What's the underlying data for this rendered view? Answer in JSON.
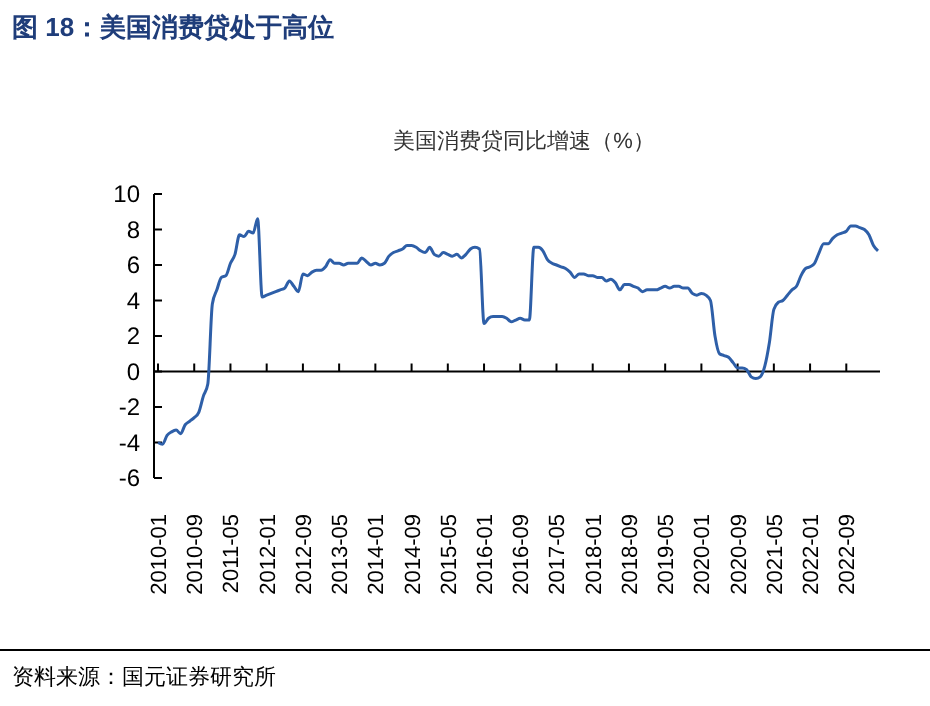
{
  "chart_data": {
    "type": "line",
    "title": "图 18：美国消费贷处于高位",
    "subtitle": "美国消费贷同比增速（%）",
    "categories": [
      "2010-01",
      null,
      null,
      null,
      null,
      null,
      null,
      null,
      "2010-09",
      null,
      null,
      null,
      null,
      null,
      null,
      null,
      "2011-05",
      null,
      null,
      null,
      null,
      null,
      null,
      null,
      "2012-01",
      null,
      null,
      null,
      null,
      null,
      null,
      null,
      "2012-09",
      null,
      null,
      null,
      null,
      null,
      null,
      null,
      "2013-05",
      null,
      null,
      null,
      null,
      null,
      null,
      null,
      "2014-01",
      null,
      null,
      null,
      null,
      null,
      null,
      null,
      "2014-09",
      null,
      null,
      null,
      null,
      null,
      null,
      null,
      "2015-05",
      null,
      null,
      null,
      null,
      null,
      null,
      null,
      "2016-01",
      null,
      null,
      null,
      null,
      null,
      null,
      null,
      "2016-09",
      null,
      null,
      null,
      null,
      null,
      null,
      null,
      "2017-05",
      null,
      null,
      null,
      null,
      null,
      null,
      null,
      "2018-01",
      null,
      null,
      null,
      null,
      null,
      null,
      null,
      "2018-09",
      null,
      null,
      null,
      null,
      null,
      null,
      null,
      "2019-05",
      null,
      null,
      null,
      null,
      null,
      null,
      null,
      "2020-01",
      null,
      null,
      null,
      null,
      null,
      null,
      null,
      "2020-09",
      null,
      null,
      null,
      null,
      null,
      null,
      null,
      "2021-05",
      null,
      null,
      null,
      null,
      null,
      null,
      null,
      "2022-01",
      null,
      null,
      null,
      null,
      null,
      null,
      null,
      "2022-09",
      null,
      null,
      null,
      null,
      null,
      null,
      null
    ],
    "series": [
      {
        "color": "#2e5fa8",
        "values": [
          -4.0,
          -4.1,
          -3.6,
          -3.4,
          -3.3,
          -3.5,
          -3.0,
          -2.8,
          -2.6,
          -2.3,
          -1.4,
          -0.7,
          3.8,
          4.6,
          5.3,
          5.4,
          6.1,
          6.6,
          7.7,
          7.6,
          7.9,
          7.8,
          8.6,
          4.2,
          4.3,
          4.4,
          4.5,
          4.6,
          4.7,
          5.1,
          4.8,
          4.5,
          5.5,
          5.4,
          5.6,
          5.7,
          5.7,
          5.9,
          6.3,
          6.1,
          6.1,
          6.0,
          6.1,
          6.1,
          6.1,
          6.4,
          6.2,
          6.0,
          6.1,
          6.0,
          6.1,
          6.5,
          6.7,
          6.8,
          6.9,
          7.1,
          7.1,
          7.0,
          6.8,
          6.7,
          7.0,
          6.6,
          6.5,
          6.7,
          6.6,
          6.5,
          6.6,
          6.4,
          6.6,
          6.9,
          7.0,
          6.9,
          2.7,
          3.0,
          3.1,
          3.1,
          3.1,
          3.0,
          2.8,
          2.9,
          3.0,
          2.9,
          2.9,
          7.0,
          7.0,
          6.8,
          6.3,
          6.1,
          6.0,
          5.9,
          5.8,
          5.6,
          5.3,
          5.5,
          5.5,
          5.4,
          5.4,
          5.3,
          5.3,
          5.1,
          5.2,
          5.0,
          4.6,
          4.9,
          4.9,
          4.8,
          4.7,
          4.5,
          4.6,
          4.6,
          4.6,
          4.7,
          4.8,
          4.7,
          4.8,
          4.8,
          4.7,
          4.7,
          4.4,
          4.3,
          4.4,
          4.3,
          4.0,
          2.0,
          1.0,
          0.9,
          0.8,
          0.5,
          0.2,
          0.2,
          0.1,
          -0.3,
          -0.4,
          -0.3,
          0.3,
          1.6,
          3.5,
          3.9,
          4.0,
          4.3,
          4.6,
          4.8,
          5.4,
          5.8,
          5.9,
          6.1,
          6.7,
          7.2,
          7.2,
          7.5,
          7.7,
          7.8,
          7.9,
          8.2,
          8.2,
          8.1,
          8.0,
          7.7,
          7.1,
          6.8
        ]
      }
    ],
    "ylim": [
      -6,
      10
    ],
    "yticks": [
      -6,
      -4,
      -2,
      0,
      2,
      4,
      6,
      8,
      10
    ],
    "annotations": [
      "资料来源：国元证券研究所"
    ]
  }
}
